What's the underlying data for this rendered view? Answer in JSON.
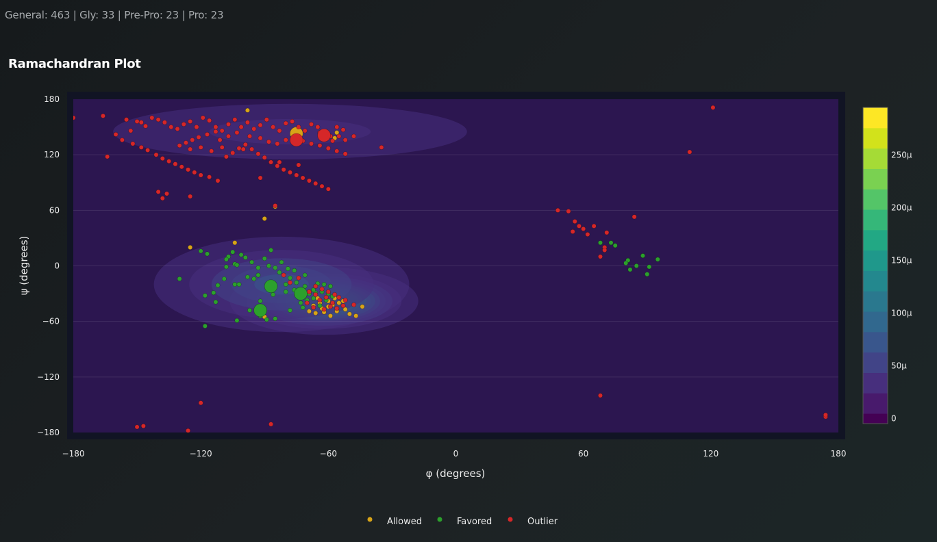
{
  "header": {
    "summary": "General: 463 | Gly: 33 | Pre-Pro: 23 | Pro: 23"
  },
  "panel": {
    "title": "Ramachandran Plot"
  },
  "colors": {
    "Allowed": "#d8a418",
    "Favored": "#2ca02c",
    "Outlier": "#d62728",
    "plot_bg": "#2c1650",
    "panel_bg": "#111424"
  },
  "chart_data": {
    "type": "scatter",
    "title": "Ramachandran Plot",
    "xlabel": "φ (degrees)",
    "ylabel": "ψ (degrees)",
    "xlim": [
      -180,
      180
    ],
    "ylim": [
      -180,
      180
    ],
    "x_ticks": [
      -180,
      -120,
      -60,
      0,
      60,
      120,
      180
    ],
    "y_ticks": [
      -180,
      -120,
      -60,
      0,
      60,
      120,
      180
    ],
    "x_tick_labels": [
      "−180",
      "−120",
      "−60",
      "0",
      "60",
      "120",
      "180"
    ],
    "y_tick_labels": [
      "−180",
      "−120",
      "−60",
      "0",
      "60",
      "120",
      "180"
    ],
    "grid": true,
    "legend_position": "bottom-center",
    "colorbar": {
      "tick_labels": [
        "0",
        "50μ",
        "100μ",
        "150μ",
        "200μ",
        "250μ"
      ],
      "tick_values": [
        0,
        50,
        100,
        150,
        200,
        250
      ],
      "max": 295,
      "levels": 15
    },
    "density_regions": [
      {
        "phi": -78,
        "psi": 145,
        "sphi": 50,
        "spsi": 18,
        "peak": 0.12
      },
      {
        "phi": -62,
        "psi": -38,
        "sphi": 17,
        "spsi": 14,
        "peak": 1.0
      },
      {
        "phi": -82,
        "psi": -20,
        "sphi": 28,
        "spsi": 24,
        "peak": 0.32
      }
    ],
    "series": [
      {
        "name": "Allowed",
        "points": [
          [
            -104,
            25
          ],
          [
            -125,
            20
          ],
          [
            -85,
            64
          ],
          [
            -90,
            51
          ],
          [
            -98,
            168
          ],
          [
            -75,
            146
          ],
          [
            -56,
            144
          ],
          [
            -57,
            138
          ],
          [
            -90,
            -55
          ],
          [
            -50,
            -52
          ],
          [
            -44,
            -44
          ],
          [
            -47,
            -54
          ],
          [
            -52,
            -47
          ],
          [
            -56,
            -49
          ],
          [
            -58,
            -42
          ],
          [
            -60,
            -44
          ],
          [
            -62,
            -50
          ],
          [
            -63,
            -46
          ],
          [
            -64,
            -40
          ],
          [
            -55,
            -40
          ],
          [
            -57,
            -35
          ],
          [
            -60,
            -38
          ],
          [
            -65,
            -35
          ],
          [
            -67,
            -43
          ],
          [
            -69,
            -49
          ],
          [
            -53,
            -38
          ],
          [
            -59,
            -54
          ],
          [
            -66,
            -51
          ]
        ],
        "large_points": [
          [
            -75,
            143
          ]
        ]
      },
      {
        "name": "Favored",
        "points": [
          [
            -120,
            16
          ],
          [
            -117,
            13
          ],
          [
            -107,
            10
          ],
          [
            -104,
            2
          ],
          [
            -108,
            -1
          ],
          [
            -112,
            -21
          ],
          [
            -118,
            -32
          ],
          [
            -113,
            -39
          ],
          [
            -104,
            -20
          ],
          [
            -102,
            -20
          ],
          [
            -98,
            -12
          ],
          [
            -95,
            -14
          ],
          [
            -93,
            -10
          ],
          [
            -93,
            -2
          ],
          [
            -90,
            8
          ],
          [
            -88,
            0
          ],
          [
            -85,
            -2
          ],
          [
            -82,
            4
          ],
          [
            -78,
            -13
          ],
          [
            -75,
            -18
          ],
          [
            -71,
            -10
          ],
          [
            -76,
            -5
          ],
          [
            -80,
            -20
          ],
          [
            -86,
            -31
          ],
          [
            -92,
            -38
          ],
          [
            -97,
            -48
          ],
          [
            -103,
            -59
          ],
          [
            -89,
            -58
          ],
          [
            -85,
            -57
          ],
          [
            -78,
            -48
          ],
          [
            -72,
            -45
          ],
          [
            -66,
            -29
          ],
          [
            -69,
            -30
          ],
          [
            -63,
            -28
          ],
          [
            -60,
            -30
          ],
          [
            -58,
            -33
          ],
          [
            -61,
            -37
          ],
          [
            -64,
            -43
          ],
          [
            -67,
            -26
          ],
          [
            -71,
            -22
          ],
          [
            -70,
            -37
          ],
          [
            -67,
            -35
          ],
          [
            -73,
            -34
          ],
          [
            -75,
            -31
          ],
          [
            -80,
            -28
          ],
          [
            -118,
            -65
          ],
          [
            -130,
            -14
          ],
          [
            -109,
            -14
          ],
          [
            -114,
            -29
          ],
          [
            -92,
            -54
          ],
          [
            -103,
            1
          ],
          [
            -105,
            15
          ],
          [
            -96,
            4
          ],
          [
            -99,
            9
          ],
          [
            -101,
            12
          ],
          [
            -108,
            7
          ],
          [
            -87,
            17
          ],
          [
            -83,
            -7
          ],
          [
            -79,
            -3
          ],
          [
            -76,
            -26
          ],
          [
            -73,
            -40
          ],
          [
            -65,
            -19
          ],
          [
            -62,
            -20
          ],
          [
            -59,
            -22
          ],
          [
            68,
            25
          ],
          [
            73,
            25
          ],
          [
            75,
            22
          ],
          [
            81,
            6
          ],
          [
            80,
            3
          ],
          [
            82,
            -4
          ],
          [
            85,
            0
          ],
          [
            88,
            11
          ],
          [
            90,
            -9
          ],
          [
            91,
            -1
          ],
          [
            95,
            7
          ]
        ],
        "large_points": [
          [
            -73,
            -30
          ],
          [
            -87,
            -22
          ],
          [
            -92,
            -48
          ]
        ]
      },
      {
        "name": "Outlier",
        "points": [
          [
            -180,
            160
          ],
          [
            -166,
            162
          ],
          [
            -164,
            118
          ],
          [
            -155,
            158
          ],
          [
            -153,
            146
          ],
          [
            -150,
            156
          ],
          [
            -148,
            155
          ],
          [
            -146,
            151
          ],
          [
            -143,
            160
          ],
          [
            -140,
            158
          ],
          [
            -137,
            155
          ],
          [
            -134,
            150
          ],
          [
            -131,
            148
          ],
          [
            -128,
            153
          ],
          [
            -125,
            156
          ],
          [
            -122,
            150
          ],
          [
            -119,
            160
          ],
          [
            -116,
            157
          ],
          [
            -113,
            150
          ],
          [
            -110,
            146
          ],
          [
            -107,
            153
          ],
          [
            -104,
            158
          ],
          [
            -101,
            150
          ],
          [
            -98,
            155
          ],
          [
            -95,
            148
          ],
          [
            -92,
            152
          ],
          [
            -89,
            158
          ],
          [
            -86,
            150
          ],
          [
            -83,
            146
          ],
          [
            -80,
            154
          ],
          [
            -77,
            156
          ],
          [
            -74,
            150
          ],
          [
            -71,
            146
          ],
          [
            -68,
            153
          ],
          [
            -65,
            150
          ],
          [
            -62,
            145
          ],
          [
            -59,
            140
          ],
          [
            -56,
            150
          ],
          [
            -53,
            147
          ],
          [
            -48,
            140
          ],
          [
            -160,
            142
          ],
          [
            -157,
            136
          ],
          [
            -152,
            132
          ],
          [
            -148,
            128
          ],
          [
            -145,
            125
          ],
          [
            -141,
            120
          ],
          [
            -138,
            116
          ],
          [
            -135,
            113
          ],
          [
            -132,
            110
          ],
          [
            -129,
            107
          ],
          [
            -126,
            104
          ],
          [
            -123,
            101
          ],
          [
            -120,
            98
          ],
          [
            -116,
            96
          ],
          [
            -112,
            92
          ],
          [
            -108,
            118
          ],
          [
            -105,
            122
          ],
          [
            -102,
            127
          ],
          [
            -99,
            131
          ],
          [
            -96,
            126
          ],
          [
            -93,
            121
          ],
          [
            -90,
            117
          ],
          [
            -87,
            112
          ],
          [
            -84,
            108
          ],
          [
            -81,
            104
          ],
          [
            -78,
            101
          ],
          [
            -75,
            98
          ],
          [
            -72,
            95
          ],
          [
            -69,
            92
          ],
          [
            -66,
            89
          ],
          [
            -63,
            86
          ],
          [
            -60,
            83
          ],
          [
            -130,
            130
          ],
          [
            -125,
            126
          ],
          [
            -120,
            128
          ],
          [
            -115,
            124
          ],
          [
            -110,
            128
          ],
          [
            -100,
            126
          ],
          [
            -97,
            140
          ],
          [
            -92,
            138
          ],
          [
            -88,
            134
          ],
          [
            -84,
            132
          ],
          [
            -80,
            136
          ],
          [
            -76,
            138
          ],
          [
            -72,
            135
          ],
          [
            -68,
            132
          ],
          [
            -64,
            130
          ],
          [
            -60,
            127
          ],
          [
            -56,
            124
          ],
          [
            -52,
            121
          ],
          [
            -140,
            80
          ],
          [
            -136,
            78
          ],
          [
            -125,
            75
          ],
          [
            -92,
            95
          ],
          [
            -83,
            112
          ],
          [
            -74,
            109
          ],
          [
            -113,
            145
          ],
          [
            -117,
            142
          ],
          [
            -121,
            139
          ],
          [
            -124,
            136
          ],
          [
            -127,
            133
          ],
          [
            -103,
            144
          ],
          [
            -107,
            140
          ],
          [
            -111,
            136
          ],
          [
            -138,
            73
          ],
          [
            -85,
            65
          ],
          [
            -35,
            128
          ],
          [
            -64,
            144
          ],
          [
            -61,
            138
          ],
          [
            -58,
            135
          ],
          [
            -55,
            140
          ],
          [
            -52,
            136
          ],
          [
            -66,
            -22
          ],
          [
            -63,
            -25
          ],
          [
            -60,
            -28
          ],
          [
            -57,
            -31
          ],
          [
            -61,
            -34
          ],
          [
            -64,
            -37
          ],
          [
            -58,
            -40
          ],
          [
            -55,
            -34
          ],
          [
            -52,
            -37
          ],
          [
            -59,
            -44
          ],
          [
            -62,
            -47
          ],
          [
            -56,
            -46
          ],
          [
            -66,
            -31
          ],
          [
            -69,
            -28
          ],
          [
            -70,
            -40
          ],
          [
            -53,
            -43
          ],
          [
            -74,
            -13
          ],
          [
            -78,
            -18
          ],
          [
            -81,
            -10
          ],
          [
            -48,
            -42
          ],
          [
            -67,
            -45
          ],
          [
            -120,
            -148
          ],
          [
            -150,
            -174
          ],
          [
            -147,
            -173
          ],
          [
            -126,
            -178
          ],
          [
            -87,
            -171
          ],
          [
            68,
            -140
          ],
          [
            121,
            171
          ],
          [
            110,
            123
          ],
          [
            48,
            60
          ],
          [
            53,
            59
          ],
          [
            56,
            48
          ],
          [
            58,
            43
          ],
          [
            55,
            37
          ],
          [
            60,
            40
          ],
          [
            62,
            34
          ],
          [
            65,
            43
          ],
          [
            71,
            36
          ],
          [
            70,
            20
          ],
          [
            70,
            17
          ],
          [
            68,
            10
          ],
          [
            84,
            53
          ],
          [
            174,
            -163
          ],
          [
            174,
            -161
          ]
        ],
        "large_points": [
          [
            -62,
            141
          ],
          [
            -75,
            136
          ]
        ]
      }
    ]
  }
}
